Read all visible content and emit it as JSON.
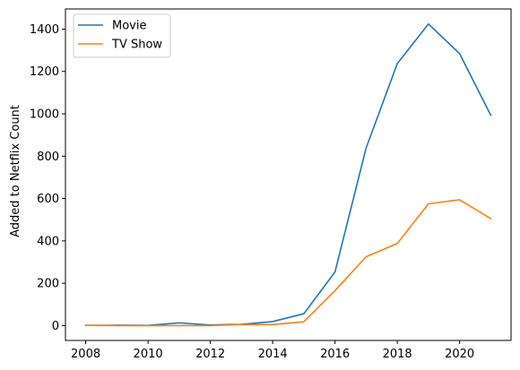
{
  "chart_data": {
    "type": "line",
    "title": "",
    "xlabel": "",
    "ylabel": "Added to Netflix Count",
    "x": [
      2008,
      2009,
      2010,
      2011,
      2012,
      2013,
      2014,
      2015,
      2016,
      2017,
      2018,
      2019,
      2020,
      2021
    ],
    "series": [
      {
        "name": "Movie",
        "color": "#1f77b4",
        "values": [
          1,
          2,
          1,
          13,
          3,
          6,
          19,
          56,
          253,
          839,
          1237,
          1424,
          1284,
          993
        ]
      },
      {
        "name": "TV Show",
        "color": "#ff7f0e",
        "values": [
          1,
          0,
          0,
          0,
          0,
          5,
          5,
          18,
          165,
          325,
          388,
          575,
          594,
          505
        ]
      }
    ],
    "xlim": [
      2007.35,
      2021.65
    ],
    "ylim": [
      -70,
      1495
    ],
    "xticks": [
      2008,
      2010,
      2012,
      2014,
      2016,
      2018,
      2020
    ],
    "yticks": [
      0,
      200,
      400,
      600,
      800,
      1000,
      1200,
      1400
    ],
    "grid": false,
    "legend": "upper-left"
  }
}
